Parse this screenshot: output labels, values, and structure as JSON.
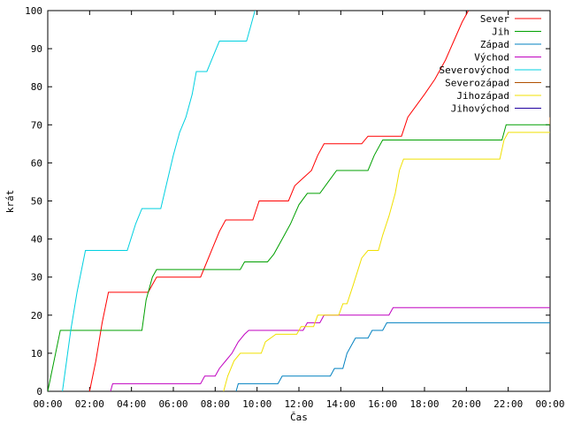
{
  "chart_data": {
    "type": "line",
    "xlabel": "Čas",
    "ylabel": "krát",
    "xlim": [
      0,
      24
    ],
    "ylim": [
      0,
      100
    ],
    "x_ticks": [
      {
        "v": 0,
        "label": "00:00"
      },
      {
        "v": 2,
        "label": "02:00"
      },
      {
        "v": 4,
        "label": "04:00"
      },
      {
        "v": 6,
        "label": "06:00"
      },
      {
        "v": 8,
        "label": "08:00"
      },
      {
        "v": 10,
        "label": "10:00"
      },
      {
        "v": 12,
        "label": "12:00"
      },
      {
        "v": 14,
        "label": "14:00"
      },
      {
        "v": 16,
        "label": "16:00"
      },
      {
        "v": 18,
        "label": "18:00"
      },
      {
        "v": 20,
        "label": "20:00"
      },
      {
        "v": 22,
        "label": "22:00"
      },
      {
        "v": 24,
        "label": "00:00"
      }
    ],
    "y_ticks": [
      {
        "v": 0,
        "label": "0"
      },
      {
        "v": 10,
        "label": "10"
      },
      {
        "v": 20,
        "label": "20"
      },
      {
        "v": 30,
        "label": "30"
      },
      {
        "v": 40,
        "label": "40"
      },
      {
        "v": 50,
        "label": "50"
      },
      {
        "v": 60,
        "label": "60"
      },
      {
        "v": 70,
        "label": "70"
      },
      {
        "v": 80,
        "label": "80"
      },
      {
        "v": 90,
        "label": "90"
      },
      {
        "v": 100,
        "label": "100"
      }
    ],
    "legend_position": "top-right",
    "grid": false,
    "series": [
      {
        "name": "Sever",
        "color": "#ff0000",
        "points": [
          [
            2.0,
            0
          ],
          [
            2.3,
            8
          ],
          [
            2.6,
            18
          ],
          [
            2.9,
            26
          ],
          [
            4.8,
            26
          ],
          [
            5.0,
            28
          ],
          [
            5.2,
            30
          ],
          [
            7.3,
            30
          ],
          [
            7.6,
            34
          ],
          [
            7.9,
            38
          ],
          [
            8.2,
            42
          ],
          [
            8.5,
            45
          ],
          [
            9.8,
            45
          ],
          [
            10.1,
            50
          ],
          [
            11.5,
            50
          ],
          [
            11.8,
            54
          ],
          [
            12.2,
            56
          ],
          [
            12.6,
            58
          ],
          [
            12.9,
            62
          ],
          [
            13.2,
            65
          ],
          [
            15.0,
            65
          ],
          [
            15.3,
            67
          ],
          [
            16.9,
            67
          ],
          [
            17.2,
            72
          ],
          [
            17.6,
            75
          ],
          [
            18.0,
            78
          ],
          [
            18.5,
            82
          ],
          [
            19.0,
            87
          ],
          [
            19.4,
            92
          ],
          [
            19.8,
            97
          ],
          [
            20.1,
            100
          ]
        ]
      },
      {
        "name": "Jih",
        "color": "#00a000",
        "points": [
          [
            0.0,
            0
          ],
          [
            0.3,
            8
          ],
          [
            0.6,
            16
          ],
          [
            4.5,
            16
          ],
          [
            4.7,
            24
          ],
          [
            5.0,
            30
          ],
          [
            5.2,
            32
          ],
          [
            9.2,
            32
          ],
          [
            9.4,
            34
          ],
          [
            10.5,
            34
          ],
          [
            10.8,
            36
          ],
          [
            11.2,
            40
          ],
          [
            11.6,
            44
          ],
          [
            12.0,
            49
          ],
          [
            12.4,
            52
          ],
          [
            13.0,
            52
          ],
          [
            13.4,
            55
          ],
          [
            13.8,
            58
          ],
          [
            15.3,
            58
          ],
          [
            15.6,
            62
          ],
          [
            16.0,
            66
          ],
          [
            21.7,
            66
          ],
          [
            21.9,
            70
          ],
          [
            24.0,
            70
          ]
        ]
      },
      {
        "name": "Západ",
        "color": "#0080c0",
        "points": [
          [
            9.0,
            0
          ],
          [
            9.1,
            2
          ],
          [
            11.0,
            2
          ],
          [
            11.2,
            4
          ],
          [
            13.5,
            4
          ],
          [
            13.7,
            6
          ],
          [
            14.1,
            6
          ],
          [
            14.3,
            10
          ],
          [
            14.7,
            14
          ],
          [
            15.3,
            14
          ],
          [
            15.5,
            16
          ],
          [
            16.0,
            16
          ],
          [
            16.2,
            18
          ],
          [
            24.0,
            18
          ]
        ]
      },
      {
        "name": "Východ",
        "color": "#c000c0",
        "points": [
          [
            3.0,
            0
          ],
          [
            3.1,
            2
          ],
          [
            7.3,
            2
          ],
          [
            7.5,
            4
          ],
          [
            8.0,
            4
          ],
          [
            8.2,
            6
          ],
          [
            8.5,
            8
          ],
          [
            8.8,
            10
          ],
          [
            9.1,
            13
          ],
          [
            9.4,
            15
          ],
          [
            9.6,
            16
          ],
          [
            12.2,
            16
          ],
          [
            12.4,
            18
          ],
          [
            13.0,
            18
          ],
          [
            13.2,
            20
          ],
          [
            16.3,
            20
          ],
          [
            16.5,
            22
          ],
          [
            24.0,
            22
          ]
        ]
      },
      {
        "name": "Severovýchod",
        "color": "#00d0e0",
        "points": [
          [
            0.7,
            0
          ],
          [
            0.9,
            8
          ],
          [
            1.1,
            16
          ],
          [
            1.4,
            26
          ],
          [
            1.8,
            37
          ],
          [
            3.8,
            37
          ],
          [
            4.2,
            44
          ],
          [
            4.5,
            48
          ],
          [
            5.4,
            48
          ],
          [
            5.7,
            55
          ],
          [
            6.0,
            62
          ],
          [
            6.3,
            68
          ],
          [
            6.6,
            72
          ],
          [
            6.9,
            78
          ],
          [
            7.1,
            84
          ],
          [
            7.6,
            84
          ],
          [
            7.9,
            88
          ],
          [
            8.2,
            92
          ],
          [
            9.5,
            92
          ],
          [
            9.7,
            96
          ],
          [
            9.9,
            100
          ]
        ]
      },
      {
        "name": "Severozápad",
        "color": "#b05000",
        "points": [
          [
            24.0,
            70
          ],
          [
            24.0,
            72
          ]
        ]
      },
      {
        "name": "Jihozápad",
        "color": "#f0e000",
        "points": [
          [
            8.4,
            0
          ],
          [
            8.6,
            4
          ],
          [
            8.9,
            8
          ],
          [
            9.2,
            10
          ],
          [
            10.2,
            10
          ],
          [
            10.4,
            13
          ],
          [
            10.9,
            15
          ],
          [
            11.9,
            15
          ],
          [
            12.1,
            17
          ],
          [
            12.7,
            17
          ],
          [
            12.9,
            20
          ],
          [
            13.9,
            20
          ],
          [
            14.1,
            23
          ],
          [
            14.3,
            23
          ],
          [
            14.6,
            28
          ],
          [
            15.0,
            35
          ],
          [
            15.3,
            37
          ],
          [
            15.8,
            37
          ],
          [
            16.0,
            41
          ],
          [
            16.3,
            46
          ],
          [
            16.6,
            52
          ],
          [
            16.8,
            58
          ],
          [
            17.0,
            61
          ],
          [
            21.6,
            61
          ],
          [
            21.8,
            66
          ],
          [
            22.0,
            68
          ],
          [
            24.0,
            68
          ]
        ]
      },
      {
        "name": "Jihovýchod",
        "color": "#2000a0",
        "points": []
      }
    ]
  }
}
